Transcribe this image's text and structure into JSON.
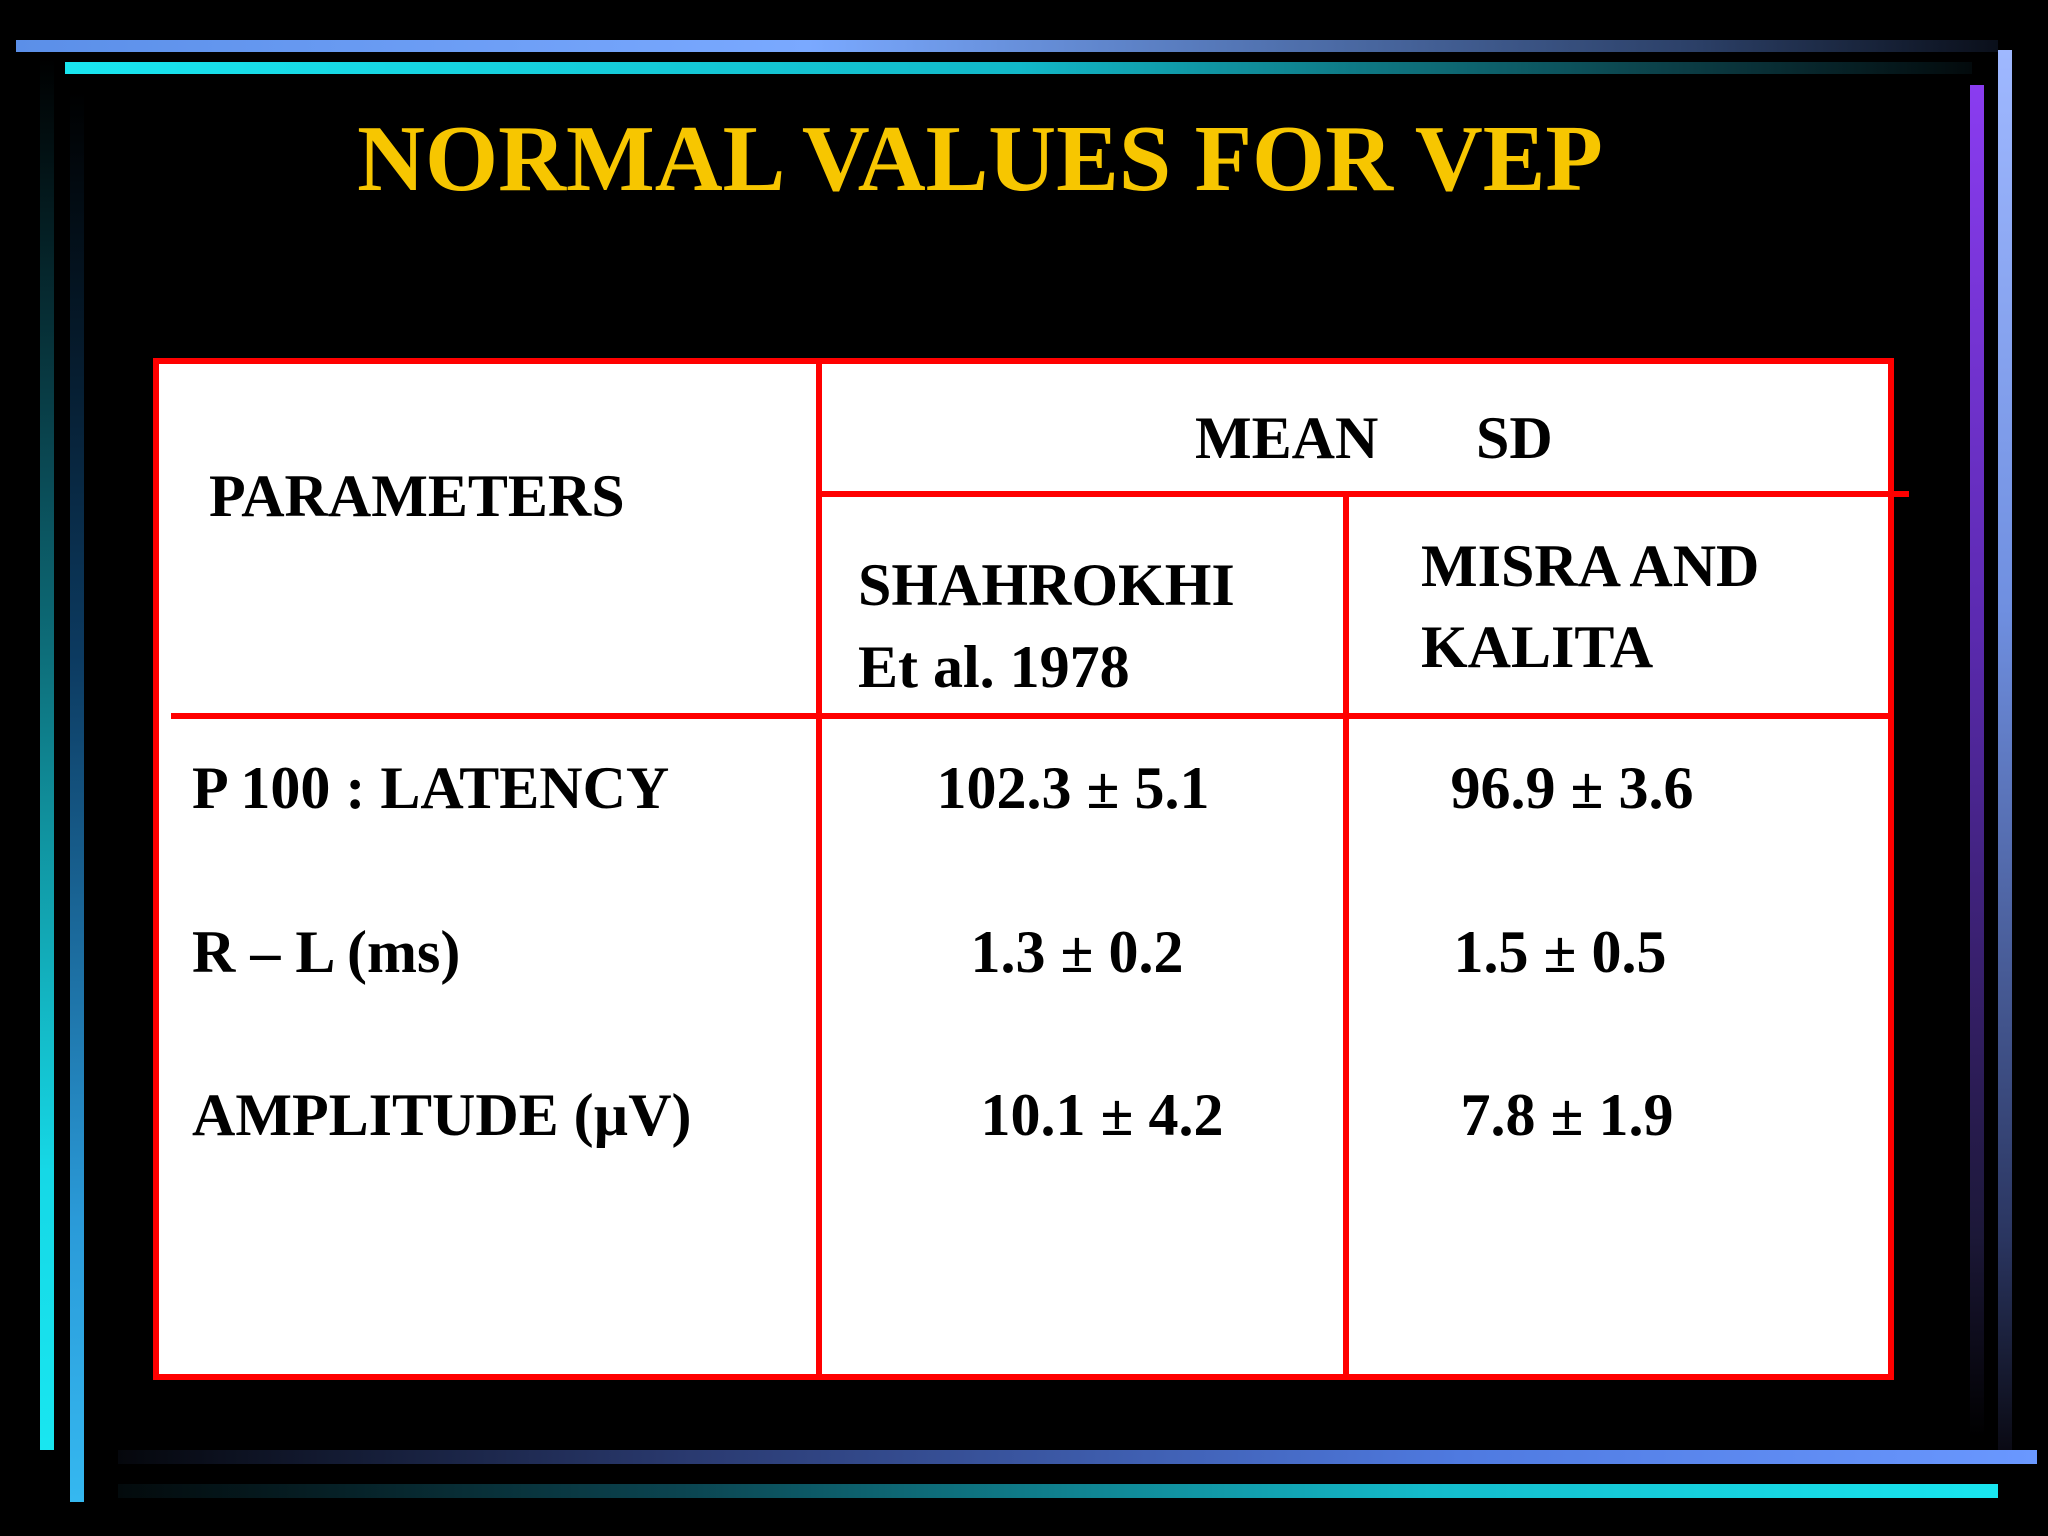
{
  "title": "NORMAL VALUES FOR VEP",
  "table": {
    "header": {
      "parameters": "PARAMETERS",
      "group": [
        "MEAN",
        "SD"
      ],
      "columns": [
        [
          "SHAHROKHI",
          "Et al. 1978"
        ],
        [
          "MISRA AND",
          "KALITA"
        ]
      ]
    },
    "rows": [
      [
        "P 100 : LATENCY",
        "102.3 ± 5.1",
        "96.9 ± 3.6"
      ],
      [
        "R – L (ms)",
        "1.3 ± 0.2",
        "1.5 ± 0.5"
      ],
      [
        "AMPLITUDE (µV)",
        "10.1 ± 4.2",
        "7.8 ± 1.9"
      ]
    ]
  }
}
